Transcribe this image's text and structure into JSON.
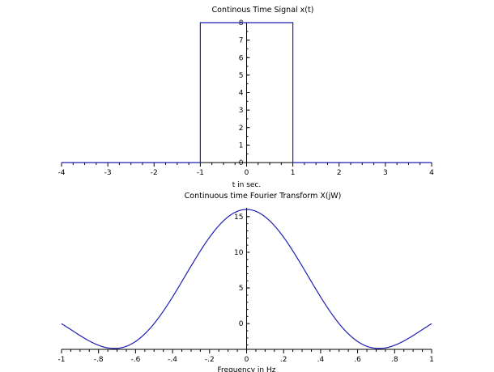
{
  "chart_data": [
    {
      "type": "line",
      "title": "Continous Time Signal x(t)",
      "xlabel": "t in sec.",
      "ylabel": "",
      "xlim": [
        -4,
        4
      ],
      "ylim": [
        0,
        8
      ],
      "xticks": [
        -4,
        -3,
        -2,
        -1,
        0,
        1,
        2,
        3,
        4
      ],
      "yticks": [
        0,
        1,
        2,
        3,
        4,
        5,
        6,
        7,
        8
      ],
      "grid": false,
      "color": "#1f1fb4",
      "series": [
        {
          "x": [
            -4,
            -1,
            -1,
            1,
            1,
            4
          ],
          "y": [
            0,
            0,
            8,
            8,
            0,
            0
          ]
        }
      ]
    },
    {
      "type": "line",
      "title": "Continuous time Fourier Transform X(jW)",
      "xlabel": "Frequency in Hz",
      "ylabel": "",
      "xlim": [
        -1,
        1
      ],
      "ylim": [
        -3.6,
        16
      ],
      "xticks": [
        -1,
        -0.8,
        -0.6,
        -0.4,
        -0.2,
        0,
        0.2,
        0.4,
        0.6,
        0.8,
        1
      ],
      "yticks": [
        0,
        5,
        10,
        15
      ],
      "grid": false,
      "color": "#1f1fb4",
      "series": [
        {
          "formula": "16*sin(2*pi*f)/(2*pi*f)",
          "x": [
            -1,
            -0.9,
            -0.8,
            -0.72,
            -0.6,
            -0.5,
            -0.4,
            -0.3,
            -0.2,
            -0.1,
            0,
            0.1,
            0.2,
            0.3,
            0.4,
            0.5,
            0.6,
            0.72,
            0.8,
            0.9,
            1
          ],
          "y": [
            0,
            -1.65,
            -2.99,
            -3.46,
            -2.52,
            0,
            3.78,
            8.09,
            12.11,
            15.0,
            16,
            15.0,
            12.11,
            8.09,
            3.78,
            0,
            -2.52,
            -3.46,
            -2.99,
            -1.65,
            0
          ]
        }
      ]
    }
  ]
}
